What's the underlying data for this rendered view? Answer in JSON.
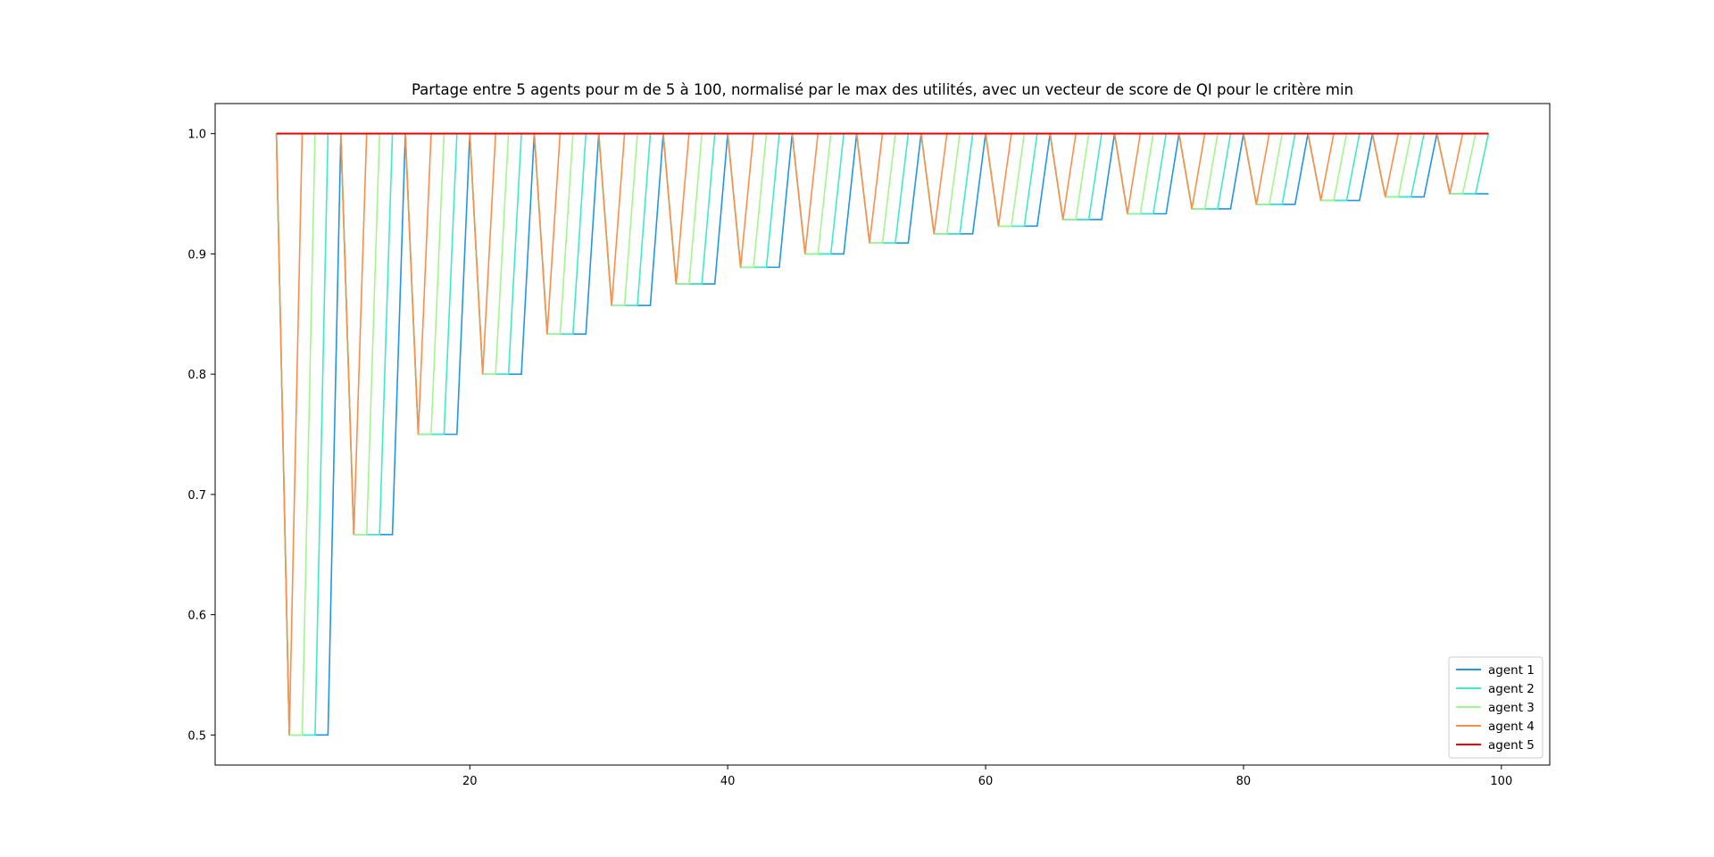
{
  "chart_data": {
    "type": "line",
    "title": "Partage entre 5 agents pour m de 5 à 100, normalisé par le max des utilités, avec un vecteur de score de QI pour le critère min",
    "xlabel": "",
    "ylabel": "",
    "xlim": [
      0.25,
      103.75
    ],
    "ylim": [
      0.475,
      1.025
    ],
    "xticks": [
      20,
      40,
      60,
      80,
      100
    ],
    "xtick_labels": [
      "20",
      "40",
      "60",
      "80",
      "100"
    ],
    "yticks": [
      0.5,
      0.6,
      0.7,
      0.8,
      0.9,
      1.0
    ],
    "ytick_labels": [
      "0.5",
      "0.6",
      "0.7",
      "0.8",
      "0.9",
      "1.0"
    ],
    "grid": false,
    "legend_position": "lower-right",
    "x_range": [
      5,
      99
    ],
    "series": [
      {
        "name": "agent 1",
        "color": "#1f96e8"
      },
      {
        "name": "agent 2",
        "color": "#3eebc6"
      },
      {
        "name": "agent 3",
        "color": "#a3f58d"
      },
      {
        "name": "agent 4",
        "color": "#fd8e4a"
      },
      {
        "name": "agent 5",
        "color": "#f40202"
      }
    ],
    "series_rule": "For m = 5k + j (j = 0..4, k = m div 5): agent i (i = 1..4) has value k/(k+1) when j <= 4 - i and j >= 1, otherwise 1.0; at j = 0 all agents equal 1.0; agent 5 is always 1.0",
    "values_by_m": {
      "x": [
        5,
        6,
        7,
        8,
        9,
        10,
        11,
        12,
        13,
        14,
        15,
        16,
        17,
        18,
        19,
        20,
        21,
        22,
        23,
        24,
        25,
        26,
        27,
        28,
        29,
        30,
        31,
        32,
        33,
        34,
        35,
        36,
        37,
        38,
        39,
        40,
        41,
        42,
        43,
        44,
        45,
        46,
        47,
        48,
        49,
        50,
        51,
        52,
        53,
        54,
        55,
        56,
        57,
        58,
        59,
        60,
        61,
        62,
        63,
        64,
        65,
        66,
        67,
        68,
        69,
        70,
        71,
        72,
        73,
        74,
        75,
        76,
        77,
        78,
        79,
        80,
        81,
        82,
        83,
        84,
        85,
        86,
        87,
        88,
        89,
        90,
        91,
        92,
        93,
        94,
        95,
        96,
        97,
        98,
        99
      ]
    }
  }
}
